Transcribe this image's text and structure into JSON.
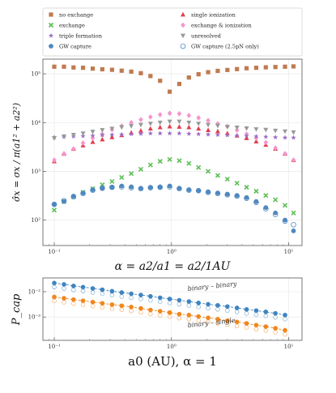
{
  "colors": {
    "no_exchange": "#c07a50",
    "exchange": "#5cbf55",
    "triple_formation": "#9b6cc8",
    "gw_capture": "#4f88c0",
    "single_ionization": "#e0404e",
    "exchange_ionization": "#f595cc",
    "unresolved": "#999999",
    "gw_capture_25pn": "#4f88c0",
    "cap_binary_binary": "#3f84c0",
    "cap_binary_single": "#f0861c"
  },
  "legend": [
    {
      "key": "no_exchange",
      "label": "no exchange",
      "marker": "square"
    },
    {
      "key": "single_ionization",
      "label": "single ionization",
      "marker": "triangle"
    },
    {
      "key": "exchange",
      "label": "exchange",
      "marker": "x"
    },
    {
      "key": "exchange_ionization",
      "label": "exchange & ionization",
      "marker": "diamond"
    },
    {
      "key": "triple_formation",
      "label": "triple formation",
      "marker": "star"
    },
    {
      "key": "unresolved",
      "label": "unresolved",
      "marker": "tri_down"
    },
    {
      "key": "gw_capture",
      "label": "GW capture",
      "marker": "circle"
    },
    {
      "key": "gw_capture_25pn",
      "label": "GW capture (2.5pN only)",
      "marker": "open_circle"
    }
  ],
  "chart_data": [
    {
      "type": "scatter",
      "xlabel": "α = a2/a1 = a2/1AU",
      "ylabel": "σ̂x = σx / π(a1² + a2²)",
      "xscale": "log",
      "yscale": "log",
      "xlim": [
        0.08,
        13
      ],
      "ylim": [
        30,
        200000
      ],
      "xticks": [
        "10⁻¹",
        "10⁰",
        "10¹"
      ],
      "yticks": [
        "10²",
        "10³",
        "10⁴",
        "10⁵"
      ],
      "grid": true,
      "x": [
        0.1,
        0.121,
        0.146,
        0.176,
        0.213,
        0.257,
        0.311,
        0.376,
        0.454,
        0.548,
        0.662,
        0.8,
        0.966,
        1.166,
        1.409,
        1.702,
        2.056,
        2.483,
        3.0,
        3.623,
        4.376,
        5.286,
        6.385,
        7.712,
        9.315,
        11.0
      ],
      "series": [
        {
          "name": "no exchange",
          "key": "no_exchange",
          "values": [
            140000,
            140000,
            135000,
            133000,
            128000,
            124000,
            121000,
            116000,
            111000,
            103000,
            90000,
            72000,
            43000,
            62000,
            84000,
            98000,
            108000,
            115000,
            120000,
            125000,
            130000,
            133000,
            136000,
            138000,
            140000,
            142000
          ]
        },
        {
          "name": "single ionization",
          "key": "single_ionization",
          "values": [
            1600,
            2300,
            2900,
            3400,
            4000,
            4500,
            5000,
            5500,
            6200,
            6800,
            7500,
            8000,
            8300,
            8200,
            8000,
            7500,
            7000,
            6600,
            6000,
            5400,
            4800,
            4100,
            3500,
            2900,
            2300,
            1700
          ]
        },
        {
          "name": "exchange",
          "key": "exchange",
          "values": [
            160,
            240,
            300,
            370,
            440,
            530,
            620,
            750,
            900,
            1100,
            1350,
            1600,
            1750,
            1650,
            1450,
            1200,
            1000,
            820,
            690,
            570,
            470,
            390,
            320,
            260,
            200,
            140
          ]
        },
        {
          "name": "exchange & ionization",
          "key": "exchange_ionization",
          "values": [
            1700,
            2300,
            2900,
            3800,
            4800,
            5800,
            7200,
            8500,
            10000,
            11500,
            13000,
            14500,
            15500,
            15200,
            14000,
            12500,
            11000,
            9500,
            8300,
            7000,
            5800,
            4800,
            3900,
            3000,
            2300,
            1700
          ]
        },
        {
          "name": "triple formation",
          "key": "triple_formation",
          "values": [
            5000,
            5100,
            5200,
            5300,
            5400,
            5500,
            5600,
            5700,
            5800,
            5900,
            6000,
            6000,
            6000,
            6000,
            5900,
            5800,
            5700,
            5600,
            5500,
            5400,
            5300,
            5200,
            5100,
            5000,
            4900,
            4900
          ]
        },
        {
          "name": "unresolved",
          "key": "unresolved",
          "values": [
            4800,
            5200,
            5600,
            6000,
            6500,
            7000,
            7500,
            8000,
            8500,
            9000,
            9500,
            10000,
            10500,
            10500,
            10000,
            9500,
            9000,
            8600,
            8200,
            7900,
            7600,
            7300,
            7100,
            6800,
            6600,
            6300
          ]
        },
        {
          "name": "GW capture",
          "key": "gw_capture",
          "values": [
            210,
            240,
            310,
            360,
            420,
            450,
            470,
            500,
            480,
            450,
            470,
            480,
            500,
            450,
            420,
            400,
            380,
            360,
            340,
            320,
            290,
            240,
            180,
            140,
            100,
            60
          ]
        },
        {
          "name": "GW capture (2.5pN only)",
          "key": "gw_capture_25pn",
          "values": [
            210,
            250,
            300,
            350,
            410,
            450,
            470,
            480,
            460,
            440,
            460,
            470,
            480,
            440,
            410,
            400,
            370,
            350,
            330,
            310,
            280,
            230,
            170,
            130,
            95,
            80
          ]
        }
      ]
    },
    {
      "type": "scatter",
      "xlabel": "a0 (AU),  α = 1",
      "ylabel": "P_cap",
      "xscale": "log",
      "yscale": "log",
      "xlim": [
        0.08,
        13
      ],
      "ylim": [
        0.00012,
        0.035
      ],
      "xticks": [
        "10⁻¹",
        "10⁰",
        "10¹"
      ],
      "yticks": [
        "10⁻³",
        "10⁻²"
      ],
      "grid": true,
      "annotations": [
        "binary – binary",
        "binary – single"
      ],
      "x": [
        0.1,
        0.121,
        0.146,
        0.176,
        0.213,
        0.257,
        0.311,
        0.376,
        0.454,
        0.548,
        0.662,
        0.8,
        0.966,
        1.166,
        1.409,
        1.702,
        2.056,
        2.483,
        3.0,
        3.623,
        4.376,
        5.286,
        6.385,
        7.712,
        9.315
      ],
      "series": [
        {
          "name": "binary – binary",
          "key": "cap_binary_binary",
          "values": [
            0.022,
            0.0195,
            0.017,
            0.0152,
            0.0135,
            0.012,
            0.0105,
            0.0093,
            0.0083,
            0.0074,
            0.0066,
            0.0058,
            0.0052,
            0.0046,
            0.0041,
            0.0036,
            0.0032,
            0.0029,
            0.0026,
            0.0023,
            0.002,
            0.0018,
            0.0016,
            0.0014,
            0.0012
          ]
        },
        {
          "name": "binary – single",
          "key": "cap_binary_single",
          "values": [
            0.0062,
            0.0055,
            0.0049,
            0.0044,
            0.0039,
            0.0035,
            0.0031,
            0.0028,
            0.0025,
            0.0022,
            0.0019,
            0.0017,
            0.0015,
            0.0013,
            0.0012,
            0.00105,
            0.00093,
            0.00082,
            0.00072,
            0.00064,
            0.00056,
            0.00048,
            0.00042,
            0.00036,
            0.0003
          ]
        }
      ]
    }
  ]
}
